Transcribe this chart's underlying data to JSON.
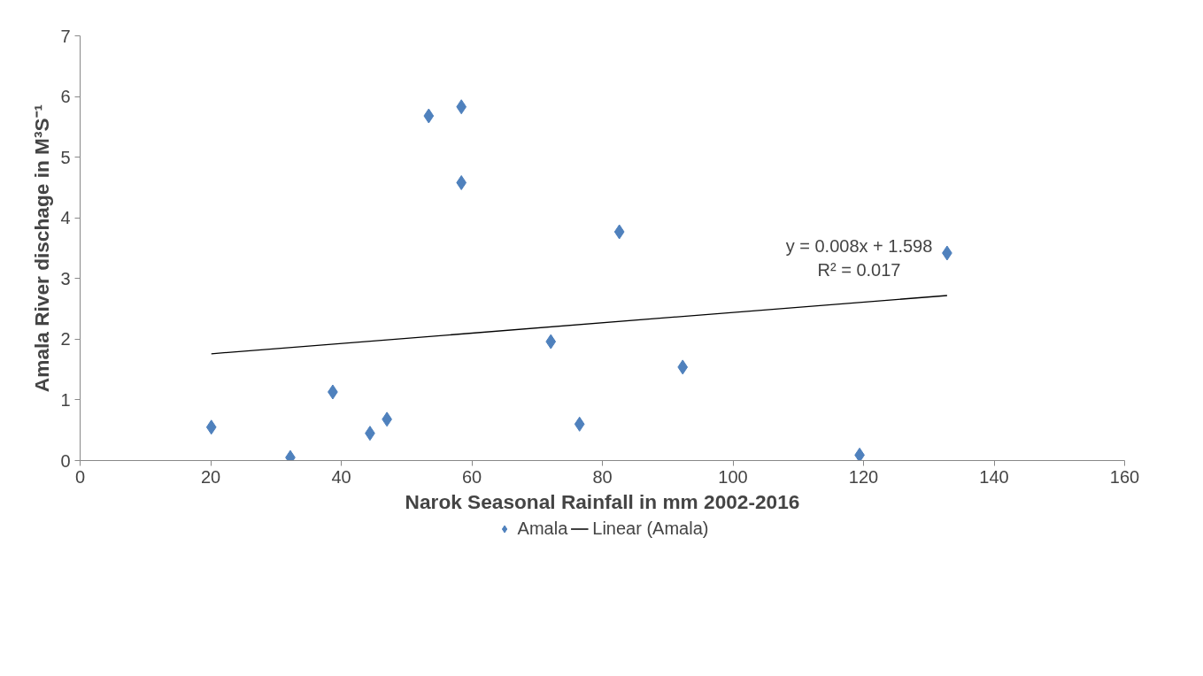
{
  "chart_data": {
    "type": "scatter",
    "xlabel": "Narok Seasonal Rainfall in mm 2002-2016",
    "ylabel": "Amala River dischage in M³S⁻¹",
    "xlim": [
      0,
      160
    ],
    "ylim": [
      0,
      7
    ],
    "xticks": [
      0,
      20,
      40,
      60,
      80,
      100,
      120,
      140,
      160
    ],
    "yticks": [
      0,
      1,
      2,
      3,
      4,
      5,
      6,
      7
    ],
    "grid": false,
    "legend": "bottom",
    "marker": "diamond",
    "annotations": [
      "y = 0.008x + 1.598",
      "R² = 0.017"
    ],
    "series": [
      {
        "name": "Amala",
        "color": "#4f81bd",
        "x": [
          20.1,
          32.2,
          38.7,
          44.4,
          47.0,
          53.4,
          58.4,
          58.4,
          72.1,
          76.5,
          82.6,
          92.3,
          119.4,
          132.8
        ],
        "values": [
          0.55,
          0.05,
          1.13,
          0.45,
          0.68,
          5.68,
          5.83,
          4.58,
          1.96,
          0.6,
          3.77,
          1.54,
          0.09,
          3.42
        ]
      },
      {
        "name": "Linear (Amala)",
        "type": "line",
        "color": "#000000",
        "marker": "none",
        "line_style": "solid",
        "x": [
          20.1,
          132.8
        ],
        "values": [
          1.76,
          2.72
        ]
      }
    ]
  }
}
